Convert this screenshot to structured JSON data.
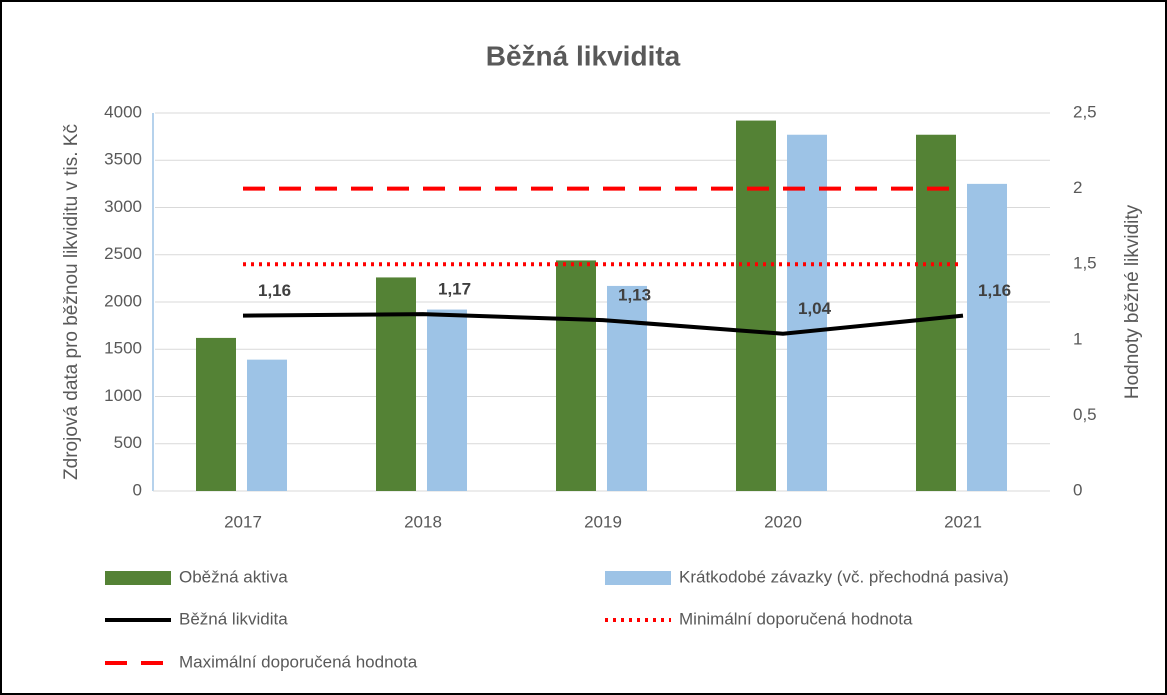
{
  "chart_data": {
    "type": "bar",
    "title": "Běžná likvidita",
    "y_label": "Zdrojová data pro běžnou likviditu v tis. Kč",
    "y2_label": "Hodnoty běžné likvidity",
    "categories": [
      "2017",
      "2018",
      "2019",
      "2020",
      "2021"
    ],
    "series": [
      {
        "name": "Oběžná aktiva",
        "type": "bar",
        "color": "#548235",
        "values": [
          1620,
          2260,
          2440,
          3920,
          3770
        ]
      },
      {
        "name": "Krátkodobé závazky (vč. přechodná pasiva)",
        "type": "bar",
        "color": "#9dc3e6",
        "values": [
          1390,
          1920,
          2170,
          3770,
          3250
        ]
      },
      {
        "name": "Běžná likvidita",
        "type": "line",
        "axis": "y2",
        "color": "#000000",
        "style": "solid",
        "values": [
          1.16,
          1.17,
          1.13,
          1.04,
          1.16
        ],
        "value_labels": [
          "1,16",
          "1,17",
          "1,13",
          "1,04",
          "1,16"
        ]
      },
      {
        "name": "Minimální doporučená hodnota",
        "type": "line",
        "axis": "y2",
        "color": "#ff0000",
        "style": "dotted",
        "values": [
          1.5,
          1.5,
          1.5,
          1.5,
          1.5
        ]
      },
      {
        "name": "Maximální doporučená hodnota",
        "type": "line",
        "axis": "y2",
        "color": "#ff0000",
        "style": "dashed",
        "values": [
          2,
          2,
          2,
          2,
          2
        ]
      }
    ],
    "ylim": [
      0,
      4000
    ],
    "yticks": [
      0,
      500,
      1000,
      1500,
      2000,
      2500,
      3000,
      3500,
      4000
    ],
    "y2lim": [
      0,
      2.5
    ],
    "y2ticks": [
      0,
      {
        "value": 0.5,
        "label": "0,5"
      },
      1,
      {
        "value": 1.5,
        "label": "1,5"
      },
      2,
      {
        "value": 2.5,
        "label": "2,5"
      }
    ],
    "grid": true,
    "legend": "bottom"
  }
}
